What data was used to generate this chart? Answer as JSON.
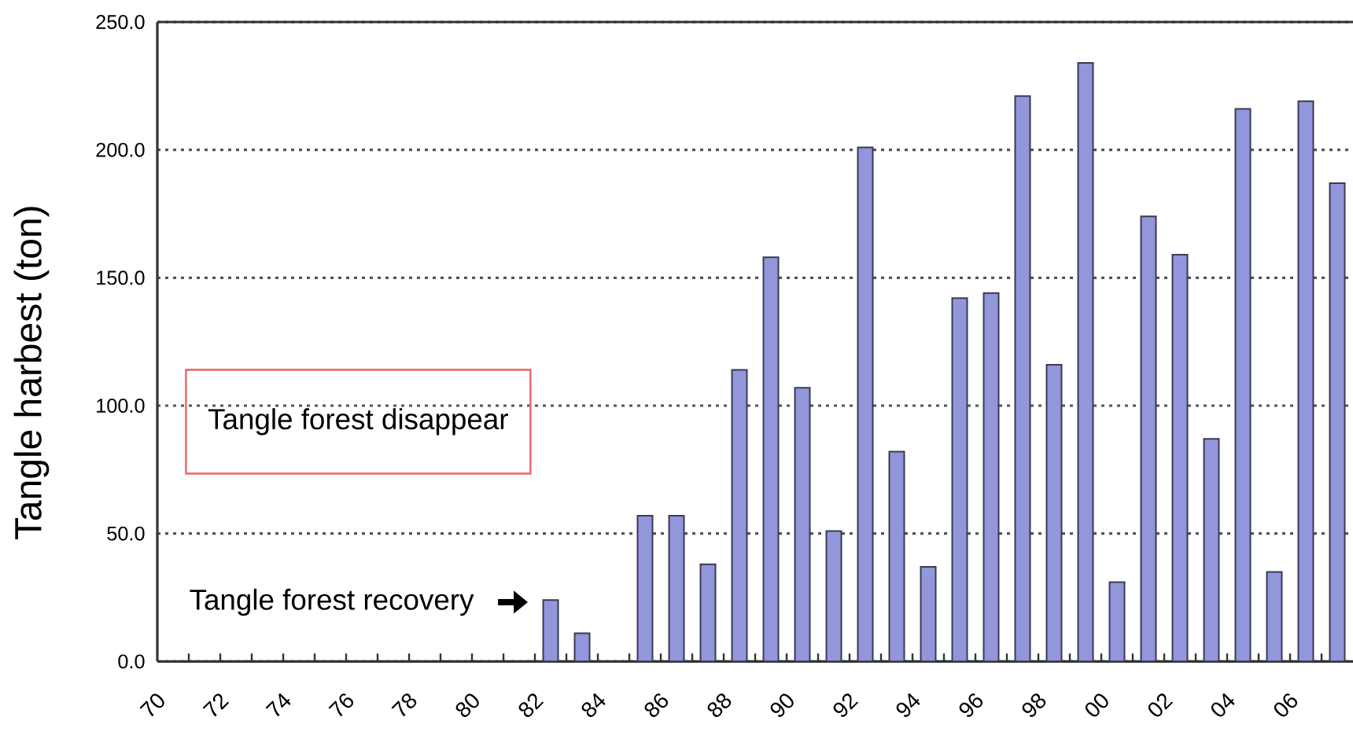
{
  "chart_data": {
    "type": "bar",
    "ylabel": "Tangle harbest (ton)",
    "categories": [
      "70",
      null,
      "72",
      null,
      "74",
      null,
      "76",
      null,
      "78",
      null,
      "80",
      null,
      "82",
      null,
      "84",
      null,
      "86",
      null,
      "88",
      null,
      "90",
      null,
      "92",
      null,
      "94",
      null,
      "96",
      null,
      "98",
      null,
      "00",
      null,
      "02",
      null,
      "04",
      null,
      "06",
      null
    ],
    "values": [
      null,
      null,
      null,
      null,
      null,
      null,
      null,
      null,
      null,
      null,
      null,
      null,
      24,
      11,
      null,
      57,
      57,
      38,
      114,
      158,
      107,
      51,
      201,
      82,
      37,
      142,
      144,
      221,
      116,
      234,
      31,
      174,
      159,
      87,
      216,
      35,
      219,
      187
    ],
    "color": "#9296da",
    "ylim": [
      0,
      250
    ],
    "yticks": [
      {
        "value": 0,
        "label": "0.0"
      },
      {
        "value": 50,
        "label": "50.0"
      },
      {
        "value": 100,
        "label": "100.0"
      },
      {
        "value": 150,
        "label": "150.0"
      },
      {
        "value": 200,
        "label": "200.0"
      },
      {
        "value": 250,
        "label": "250.0"
      }
    ],
    "grid": "y",
    "annotations": [
      "Tangle forest disappear",
      "Tangle forest recovery"
    ]
  }
}
